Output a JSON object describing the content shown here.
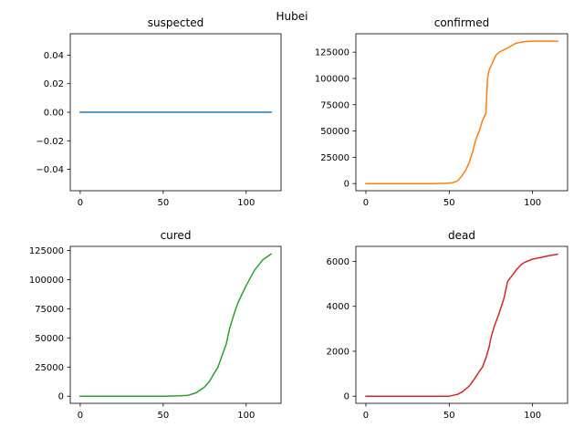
{
  "figure": {
    "suptitle": "Hubei"
  },
  "chart_data": [
    {
      "type": "line",
      "title": "suspected",
      "color": "#1f77b4",
      "xlim": [
        -6,
        121
      ],
      "ylim": [
        -0.055,
        0.055
      ],
      "x_ticks": [
        0,
        50,
        100
      ],
      "x_tick_labels": [
        "0",
        "50",
        "100"
      ],
      "y_ticks": [
        -0.04,
        -0.02,
        0.0,
        0.02,
        0.04
      ],
      "y_tick_labels": [
        "−0.04",
        "−0.02",
        "0.00",
        "0.02",
        "0.04"
      ],
      "x": [
        0,
        115
      ],
      "y": [
        0,
        0
      ]
    },
    {
      "type": "line",
      "title": "confirmed",
      "color": "#ff7f0e",
      "xlim": [
        -6,
        121
      ],
      "ylim": [
        -6800,
        142500
      ],
      "x_ticks": [
        0,
        50,
        100
      ],
      "x_tick_labels": [
        "0",
        "50",
        "100"
      ],
      "y_ticks": [
        0,
        25000,
        50000,
        75000,
        100000,
        125000
      ],
      "y_tick_labels": [
        "0",
        "25000",
        "50000",
        "75000",
        "100000",
        "125000"
      ],
      "x": [
        0,
        40,
        48,
        52,
        55,
        57,
        60,
        62,
        64,
        66,
        68,
        69,
        70,
        72,
        73,
        74,
        76,
        78,
        80,
        85,
        90,
        95,
        100,
        115
      ],
      "y": [
        0,
        0,
        200,
        800,
        2500,
        6000,
        13000,
        20000,
        30000,
        42000,
        50000,
        55000,
        60000,
        67000,
        100000,
        108000,
        115000,
        122000,
        125000,
        129000,
        133500,
        135000,
        135500,
        135500
      ]
    },
    {
      "type": "line",
      "title": "cured",
      "color": "#2ca02c",
      "xlim": [
        -6,
        121
      ],
      "ylim": [
        -6100,
        128500
      ],
      "x_ticks": [
        0,
        50,
        100
      ],
      "x_tick_labels": [
        "0",
        "50",
        "100"
      ],
      "y_ticks": [
        0,
        25000,
        50000,
        75000,
        100000,
        125000
      ],
      "y_tick_labels": [
        "0",
        "25000",
        "50000",
        "75000",
        "100000",
        "125000"
      ],
      "x": [
        0,
        50,
        60,
        65,
        70,
        75,
        78,
        80,
        83,
        85,
        88,
        90,
        93,
        95,
        100,
        105,
        110,
        115
      ],
      "y": [
        0,
        0,
        300,
        800,
        3000,
        8000,
        13000,
        18000,
        25000,
        33000,
        45000,
        58000,
        72000,
        80000,
        95000,
        108000,
        117000,
        122000
      ]
    },
    {
      "type": "line",
      "title": "dead",
      "color": "#d62728",
      "xlim": [
        -6,
        121
      ],
      "ylim": [
        -318,
        6670
      ],
      "x_ticks": [
        0,
        50,
        100
      ],
      "x_tick_labels": [
        "0",
        "50",
        "100"
      ],
      "y_ticks": [
        0,
        2000,
        4000,
        6000
      ],
      "y_tick_labels": [
        "0",
        "2000",
        "4000",
        "6000"
      ],
      "x": [
        0,
        50,
        55,
        58,
        62,
        65,
        68,
        70,
        72,
        74,
        75,
        77,
        80,
        83,
        85,
        88,
        90,
        93,
        95,
        100,
        105,
        110,
        115
      ],
      "y": [
        0,
        0,
        80,
        200,
        450,
        750,
        1100,
        1300,
        1700,
        2200,
        2600,
        3100,
        3700,
        4400,
        5100,
        5400,
        5600,
        5850,
        5950,
        6100,
        6180,
        6260,
        6320
      ]
    }
  ]
}
